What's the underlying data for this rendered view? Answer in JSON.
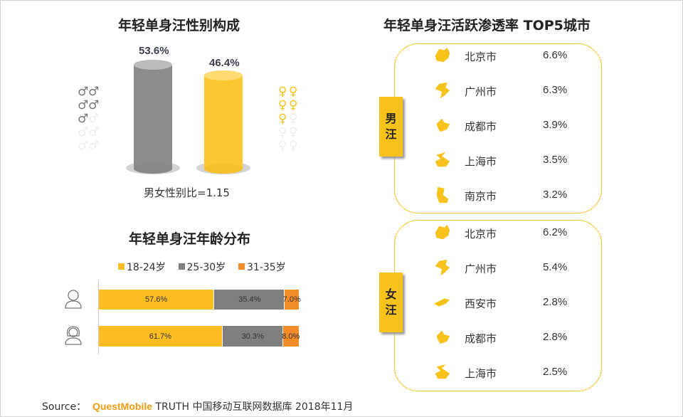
{
  "gender_chart": {
    "title": "年轻单身汪性别构成",
    "male_pct": "53.6%",
    "female_pct": "46.4%",
    "male_value": 53.6,
    "female_value": 46.4,
    "ratio_label": "男女性别比=1.15",
    "colors": {
      "male": "#8c8c8c",
      "female": "#fcc831"
    }
  },
  "chart_data": {
    "type": "bar",
    "stacked": true,
    "orientation": "horizontal",
    "title": "年轻单身汪年龄分布",
    "categories": [
      "男",
      "女"
    ],
    "legend_position": "top",
    "series": [
      {
        "name": "18-24岁",
        "color": "#fbbd22",
        "values": [
          57.6,
          61.7
        ],
        "labels": [
          "57.6%",
          "61.7%"
        ]
      },
      {
        "name": "25-30岁",
        "color": "#7f7f7f",
        "values": [
          35.4,
          30.3
        ],
        "labels": [
          "35.4%",
          "30.3%"
        ]
      },
      {
        "name": "31-35岁",
        "color": "#f28c28",
        "values": [
          7.0,
          8.0
        ],
        "labels": [
          "7.0%",
          "8.0%"
        ]
      }
    ]
  },
  "cities": {
    "title": "年轻单身汪活跃渗透率 TOP5城市",
    "male": {
      "tag": [
        "男",
        "汪"
      ],
      "rows": [
        {
          "city": "北京市",
          "value": "6.6%"
        },
        {
          "city": "广州市",
          "value": "6.3%"
        },
        {
          "city": "成都市",
          "value": "3.9%"
        },
        {
          "city": "上海市",
          "value": "3.5%"
        },
        {
          "city": "南京市",
          "value": "3.2%"
        }
      ]
    },
    "female": {
      "tag": [
        "女",
        "汪"
      ],
      "rows": [
        {
          "city": "北京市",
          "value": "6.2%"
        },
        {
          "city": "广州市",
          "value": "5.4%"
        },
        {
          "city": "西安市",
          "value": "2.8%"
        },
        {
          "city": "成都市",
          "value": "2.8%"
        },
        {
          "city": "上海市",
          "value": "2.5%"
        }
      ]
    }
  },
  "source": {
    "label": "Source：",
    "brand": "QuestMobile",
    "text": "TRUTH 中国移动互联网数据库 2018年11月",
    "brand_color": "#f39c12"
  }
}
